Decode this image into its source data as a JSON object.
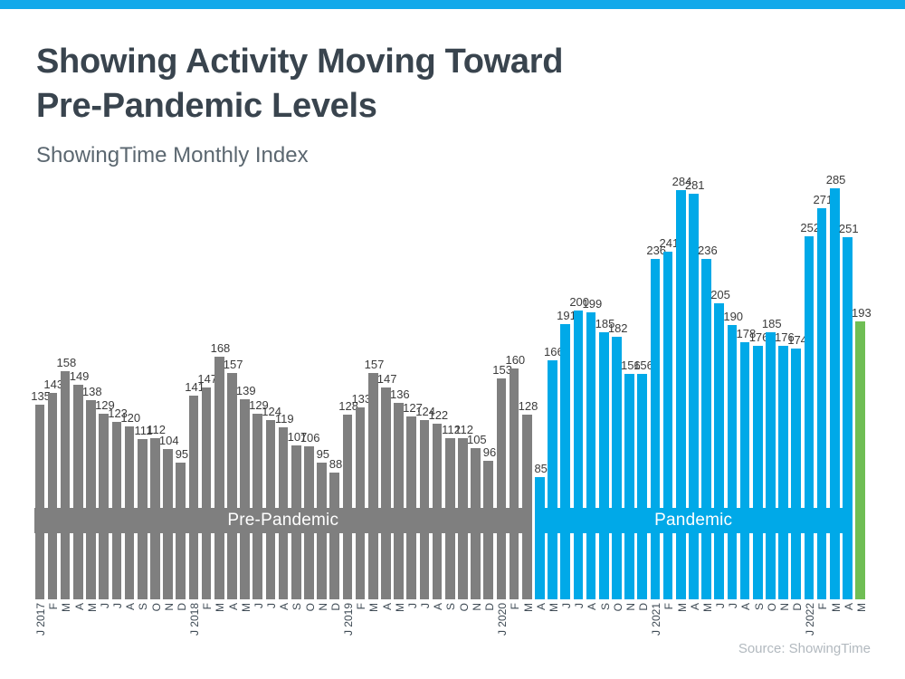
{
  "page": {
    "accent_bar_color": "#12A9EA",
    "title_line1": "Showing Activity Moving Toward",
    "title_line2": "Pre-Pandemic Levels",
    "subtitle": "ShowingTime Monthly Index",
    "source": "Source: ShowingTime"
  },
  "chart_data": {
    "type": "bar",
    "title": "Showing Activity Moving Toward Pre-Pandemic Levels",
    "subtitle": "ShowingTime Monthly Index",
    "ylabel": "ShowingTime Monthly Index",
    "ylim": [
      0,
      285
    ],
    "grid": false,
    "legend_position": "none",
    "value_labels_shown": true,
    "value_label_color": "#3B3B3B",
    "axis_label_color": "#3E4A54",
    "categories": [
      "J 2017",
      "F",
      "M",
      "A",
      "M",
      "J",
      "J",
      "A",
      "S",
      "O",
      "N",
      "D",
      "J 2018",
      "F",
      "M",
      "A",
      "M",
      "J",
      "J",
      "A",
      "S",
      "O",
      "N",
      "D",
      "J 2019",
      "F",
      "M",
      "A",
      "M",
      "J",
      "J",
      "A",
      "S",
      "O",
      "N",
      "D",
      "J 2020",
      "F",
      "M",
      "A",
      "M",
      "J",
      "J",
      "A",
      "S",
      "O",
      "N",
      "D",
      "J 2021",
      "F",
      "M",
      "A",
      "M",
      "J",
      "J",
      "A",
      "S",
      "O",
      "N",
      "D",
      "J 2022",
      "F",
      "M",
      "A",
      "M"
    ],
    "values": [
      135,
      143,
      158,
      149,
      138,
      129,
      123,
      120,
      111,
      112,
      104,
      95,
      141,
      147,
      168,
      157,
      139,
      129,
      124,
      119,
      107,
      106,
      95,
      88,
      128,
      133,
      157,
      147,
      136,
      127,
      124,
      122,
      112,
      112,
      105,
      96,
      153,
      160,
      128,
      85,
      166,
      191,
      200,
      199,
      185,
      182,
      156,
      156,
      236,
      241,
      284,
      281,
      236,
      205,
      190,
      178,
      176,
      185,
      176,
      174,
      252,
      271,
      285,
      251,
      193
    ],
    "segments": [
      {
        "band_label": "Pre-Pandemic",
        "start_index": 0,
        "count": 39,
        "color": "#7F7F7F"
      },
      {
        "band_label": "Pandemic",
        "start_index": 39,
        "count": 25,
        "color": "#00A9E8"
      },
      {
        "band_label": "",
        "start_index": 64,
        "count": 1,
        "color": "#6FBE54"
      }
    ]
  }
}
